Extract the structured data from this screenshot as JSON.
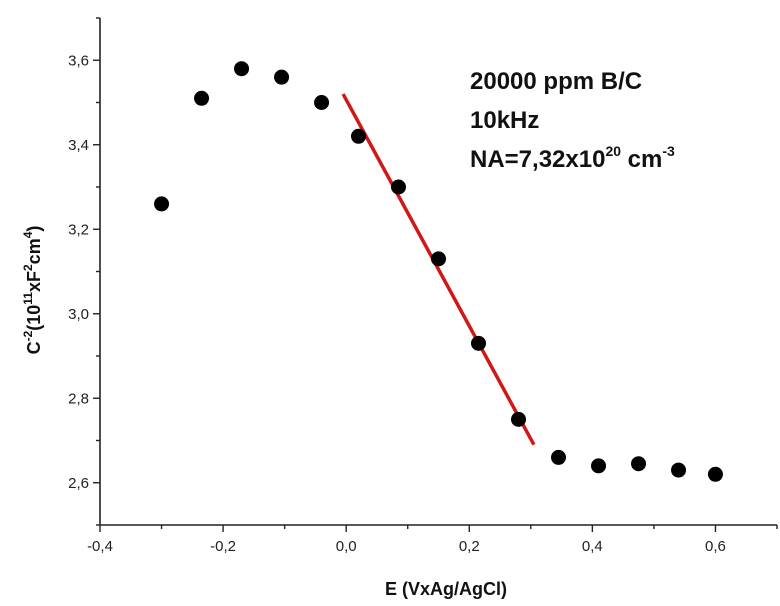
{
  "chart_data": {
    "type": "scatter",
    "xlabel": "E (VxAg/AgCl)",
    "ylabel": {
      "base": "C",
      "exp1": "-2",
      "mid1": "(10",
      "exp2": "11",
      "mid2": "xF",
      "exp3": "2",
      "mid3": "cm",
      "exp4": "4",
      "end": ")"
    },
    "xlim": [
      -0.4,
      0.7
    ],
    "ylim": [
      2.5,
      3.7
    ],
    "xticks": [
      -0.4,
      -0.2,
      0.0,
      0.2,
      0.4,
      0.6
    ],
    "xtick_labels": [
      "-0,4",
      "-0,2",
      "0,0",
      "0,2",
      "0,4",
      "0,6"
    ],
    "yticks": [
      2.6,
      2.8,
      3.0,
      3.2,
      3.4,
      3.6
    ],
    "ytick_labels": [
      "2,6",
      "2,8",
      "3,0",
      "3,2",
      "3,4",
      "3,6"
    ],
    "series": [
      {
        "marker_color": "#000000",
        "x": [
          -0.3,
          -0.235,
          -0.17,
          -0.105,
          -0.04,
          0.02,
          0.085,
          0.15,
          0.215,
          0.28,
          0.345,
          0.41,
          0.475,
          0.54,
          0.6
        ],
        "y": [
          3.26,
          3.51,
          3.58,
          3.56,
          3.5,
          3.42,
          3.3,
          3.13,
          2.93,
          2.75,
          2.66,
          2.64,
          2.645,
          2.63,
          2.62
        ]
      }
    ],
    "fit_line": {
      "x": [
        -0.005,
        0.305
      ],
      "y": [
        3.52,
        2.69
      ],
      "color": "#d01818"
    },
    "annotations": [
      {
        "text": "20000 ppm B/C"
      },
      {
        "text": "10kHz"
      },
      {
        "parts": [
          "NA=7,32x10",
          "20",
          " cm",
          "-3"
        ]
      }
    ]
  }
}
